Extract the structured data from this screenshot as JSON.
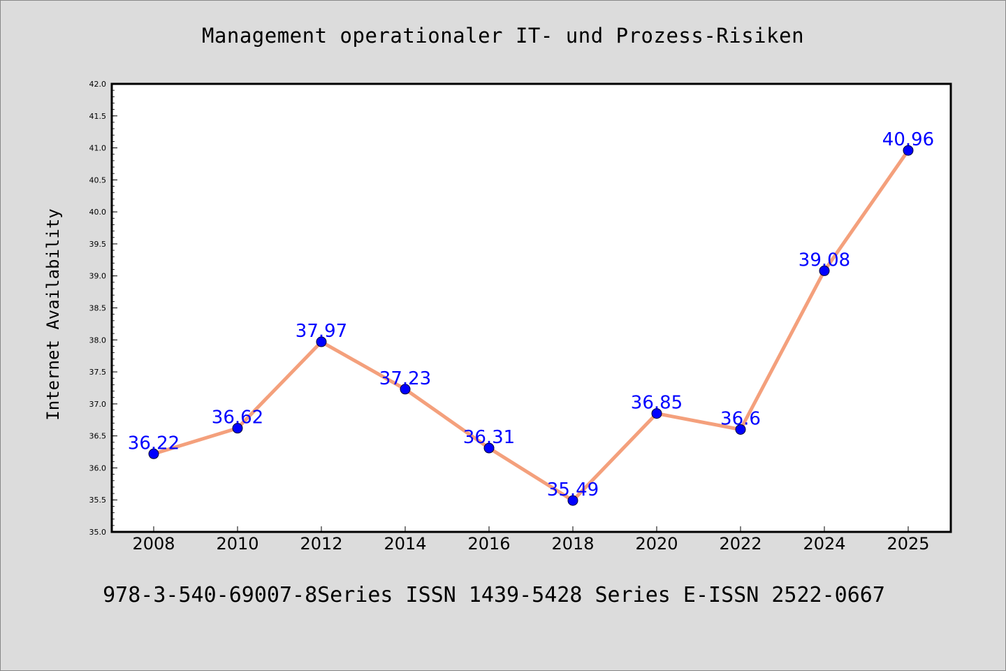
{
  "chart_data": {
    "type": "line",
    "title": "Management operationaler IT- und Prozess-Risiken",
    "xlabel": "",
    "ylabel": "Internet Availability",
    "categories": [
      "2008",
      "2010",
      "2012",
      "2014",
      "2016",
      "2018",
      "2020",
      "2022",
      "2024",
      "2025"
    ],
    "series": [
      {
        "values": [
          36.22,
          36.62,
          37.97,
          37.23,
          36.31,
          35.49,
          36.85,
          36.6,
          39.08,
          40.96
        ],
        "labels": [
          "36.22",
          "36.62",
          "37.97",
          "37.23",
          "36.31",
          "35.49",
          "36.85",
          "36.6",
          "39.08",
          "40.96"
        ]
      }
    ],
    "ylim": [
      35.0,
      42.0
    ],
    "yticks": [
      "35.0",
      "35.5",
      "36.0",
      "36.5",
      "37.0",
      "37.5",
      "38.0",
      "38.5",
      "39.0",
      "39.5",
      "40.0",
      "40.5",
      "41.0",
      "41.5",
      "42.0"
    ],
    "grid": false,
    "colors": {
      "line": "#f4a07c",
      "marker": "#0000ff",
      "label": "#0000ff",
      "background": "#dcdcdc",
      "plot_background": "#ffffff"
    }
  },
  "caption": "978-3-540-69007-8Series ISSN 1439-5428 Series E-ISSN 2522-0667"
}
